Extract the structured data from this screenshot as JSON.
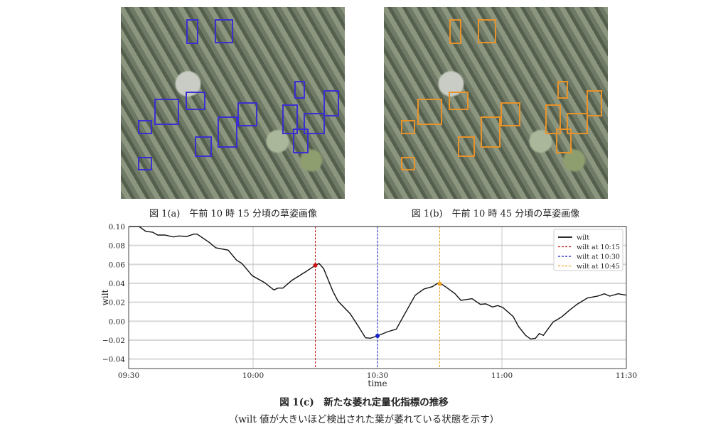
{
  "figures": {
    "a_caption": "図 1(a)　午前 10 時 15 分頃の草姿画像",
    "b_caption": "図 1(b)　午前 10 時 45 分頃の草姿画像",
    "c_caption": "図 1(c)　新たな萎れ定量化指標の推移",
    "c_note": "（wilt 値が大きいほど検出された葉が萎れている状態を示す）"
  },
  "chart_data": {
    "type": "line",
    "xlabel": "time",
    "ylabel": "wilt",
    "xlim_minutes_from_0930": [
      0,
      120
    ],
    "ylim": [
      -0.05,
      0.1
    ],
    "x_ticks": [
      {
        "m": 0,
        "label": "09:30"
      },
      {
        "m": 30,
        "label": "10:00"
      },
      {
        "m": 60,
        "label": "10:30"
      },
      {
        "m": 90,
        "label": "11:00"
      },
      {
        "m": 120,
        "label": "11:30"
      }
    ],
    "y_ticks": [
      {
        "v": 0.1,
        "label": "0.10"
      },
      {
        "v": 0.08,
        "label": "0.08"
      },
      {
        "v": 0.06,
        "label": "0.06"
      },
      {
        "v": 0.04,
        "label": "0.04"
      },
      {
        "v": 0.02,
        "label": "0.02"
      },
      {
        "v": 0.0,
        "label": "0.00"
      },
      {
        "v": -0.02,
        "label": "−0.02"
      },
      {
        "v": -0.04,
        "label": "−0.04"
      }
    ],
    "grid": true,
    "legend_position": "top-right",
    "series": [
      {
        "name": "wilt",
        "color": "#111111",
        "x": [
          0,
          2.5,
          4.1,
          5.8,
          7,
          8.7,
          10.8,
          12,
          14,
          15.7,
          16.5,
          19.5,
          21,
          24,
          26,
          27.3,
          29.8,
          32.7,
          35,
          36,
          37.2,
          39.3,
          42.6,
          45,
          45.9,
          47,
          49.2,
          50.5,
          53.4,
          55.4,
          57.1,
          58.3,
          60,
          62.5,
          64.5,
          66.6,
          69.1,
          71.2,
          73.2,
          74.5,
          75.3,
          76.6,
          78.7,
          80.1,
          82.8,
          84.8,
          86.1,
          87.7,
          89,
          90.2,
          92.7,
          94,
          95.7,
          96.9,
          98.1,
          99,
          100,
          102.3,
          104.4,
          106.4,
          108.1,
          110.6,
          113.1,
          114.7,
          116,
          118,
          120
        ],
        "y": [
          0.106,
          0.1,
          0.095,
          0.094,
          0.091,
          0.091,
          0.089,
          0.09,
          0.0895,
          0.092,
          0.092,
          0.083,
          0.0775,
          0.075,
          0.0645,
          0.061,
          0.048,
          0.041,
          0.033,
          0.035,
          0.035,
          0.043,
          0.052,
          0.059,
          0.061,
          0.0555,
          0.032,
          0.021,
          0.008,
          -0.0055,
          -0.0175,
          -0.018,
          -0.0155,
          -0.011,
          -0.0085,
          0.008,
          0.0275,
          0.034,
          0.0365,
          0.04,
          0.0395,
          0.0358,
          0.029,
          0.022,
          0.0238,
          0.0178,
          0.0183,
          0.015,
          0.0165,
          0.0145,
          0.005,
          -0.0055,
          -0.015,
          -0.0188,
          -0.018,
          -0.013,
          -0.015,
          -0.001,
          0.0045,
          0.012,
          0.0178,
          0.0245,
          0.0265,
          0.029,
          0.0265,
          0.029,
          0.0275
        ]
      }
    ],
    "markers": [
      {
        "name": "wilt at 10:15",
        "m": 45,
        "value": 0.059,
        "color": "#cc1111"
      },
      {
        "name": "wilt at 10:30",
        "m": 60,
        "value": -0.0155,
        "color": "#1122cc"
      },
      {
        "name": "wilt at 10:45",
        "m": 75,
        "value": 0.0395,
        "color": "#f0a020"
      }
    ]
  }
}
